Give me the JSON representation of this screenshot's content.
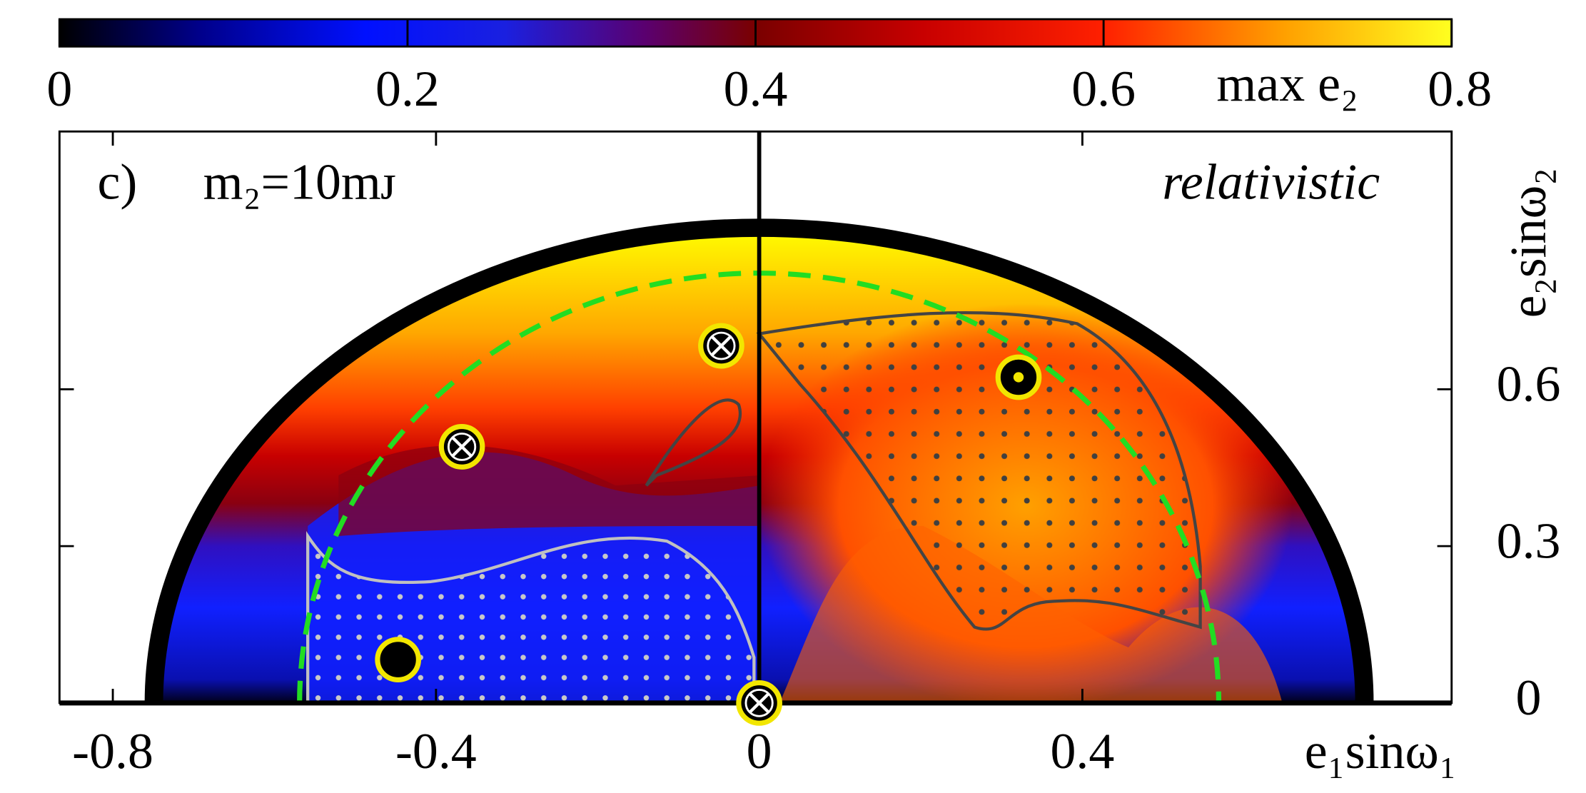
{
  "chart_data": {
    "type": "scatter",
    "annotations": [
      "c)",
      "m₂=10mᴊ",
      "relativistic"
    ],
    "xlabel": "e₁sinω₁",
    "ylabel": "e₂sinω₂",
    "xlim": [
      -0.866,
      0.857
    ],
    "ylim": [
      0,
      1.093
    ],
    "xticks": [
      -0.8,
      -0.4,
      0,
      0.4
    ],
    "yticks": [
      0,
      0.3,
      0.6
    ],
    "colorbar": {
      "label": "max e₂",
      "clim": [
        0,
        0.8
      ],
      "ticks": [
        0,
        0.2,
        0.4,
        0.6,
        0.8
      ]
    },
    "series": [
      {
        "marker": "crossed",
        "color": "#f2e600",
        "x": [
          -0.368,
          -0.047,
          0
        ],
        "y": [
          0.49,
          0.683,
          0
        ]
      },
      {
        "marker": "dot",
        "color": "#f2e600",
        "x": [
          0.321
        ],
        "y": [
          0.623
        ]
      },
      {
        "marker": "filled",
        "color": "#f2e600",
        "x": [
          -0.447
        ],
        "y": [
          0.083
        ]
      }
    ]
  }
}
